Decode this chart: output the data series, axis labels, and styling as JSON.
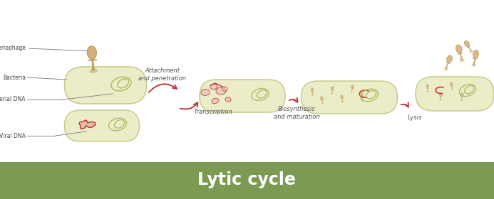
{
  "title": "Lytic cycle",
  "title_fontsize": 17,
  "title_color": "#ffffff",
  "banner_color": "#7b9a52",
  "background_color": "#ffffff",
  "cell_fill": "#eaedc8",
  "cell_edge": "#c8cc8a",
  "cell_fill2": "#eaedc8",
  "dna_green": "#b0bc68",
  "dna_red": "#c43838",
  "phage_body": "#d4b080",
  "phage_edge": "#c09858",
  "arrow_color": "#c43838",
  "label_color": "#444444",
  "line_color": "#888888",
  "labels": {
    "bacteriophage": "Bacteriophage",
    "bacteria": "Bacteria",
    "bacterial_dna": "Bacterial DNA",
    "viral_dna": "Viral DNA",
    "step1": "Attachment\nand penetration",
    "step2": "Transcription",
    "step3": "Biosynthesis\nand maturation",
    "step4": "Lysis"
  },
  "label_fontsize": 5.5,
  "step_fontsize": 6.0
}
